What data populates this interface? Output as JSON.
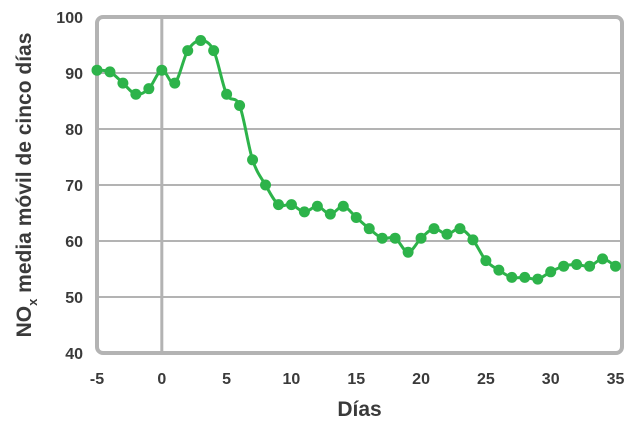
{
  "chart_data": {
    "type": "line",
    "title": "",
    "xlabel": "Días",
    "ylabel": {
      "prefix": "NO",
      "subscript": "x",
      "rest": " media móvil de cinco días"
    },
    "xlim": [
      -5,
      35.5
    ],
    "ylim": [
      40,
      100
    ],
    "xticks": [
      -5,
      0,
      5,
      10,
      15,
      20,
      25,
      30,
      35
    ],
    "yticks": [
      40,
      50,
      60,
      70,
      80,
      90,
      100
    ],
    "grid": "horizontal",
    "reference_line_x": 0,
    "colors": {
      "series": "#2db34a",
      "frame": "#b3b3b3",
      "grid": "#b3b3b3",
      "text": "#3a3a3a"
    },
    "series": [
      {
        "x": [
          -5,
          -4,
          -3,
          -2,
          -1,
          0,
          1,
          2,
          3,
          4,
          5,
          6,
          7,
          8,
          9,
          10,
          11,
          12,
          13,
          14,
          15,
          16,
          17,
          18,
          19,
          20,
          21,
          22,
          23,
          24,
          25,
          26,
          27,
          28,
          29,
          30,
          31,
          32,
          33,
          34,
          35
        ],
        "values": [
          90.5,
          90.2,
          88.2,
          86.2,
          87.2,
          90.5,
          88.2,
          94.0,
          95.8,
          94.0,
          86.2,
          84.2,
          74.5,
          70.0,
          66.5,
          66.5,
          65.2,
          66.2,
          64.8,
          66.2,
          64.2,
          62.2,
          60.5,
          60.5,
          58.0,
          60.5,
          62.2,
          61.2,
          62.2,
          60.2,
          56.5,
          54.8,
          53.5,
          53.5,
          53.2,
          54.5,
          55.5,
          55.8,
          55.5,
          56.8,
          55.5
        ]
      }
    ]
  }
}
